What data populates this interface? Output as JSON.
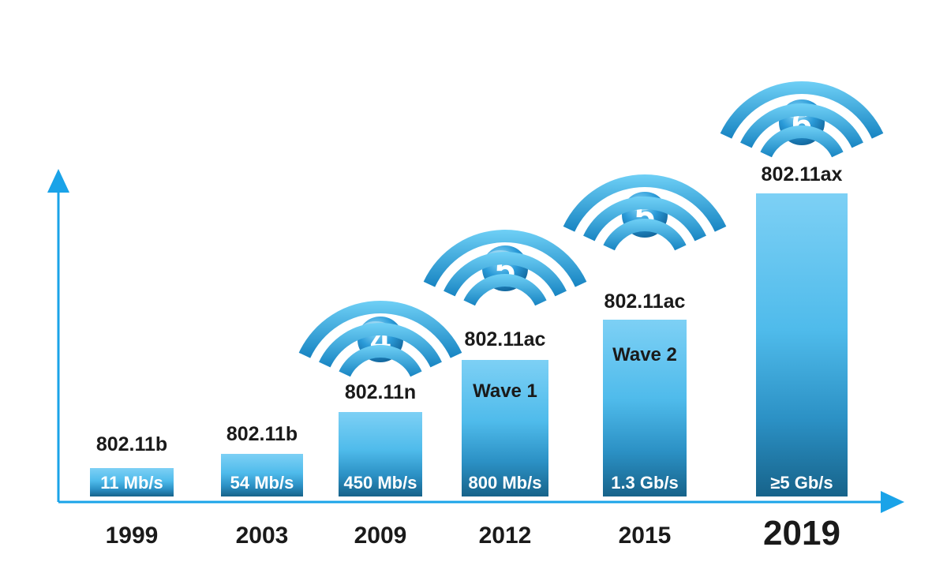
{
  "colors": {
    "axis": "#1aa3e8",
    "bar_top": "#7dd0f5",
    "bar_mid": "#3aaee2",
    "bar_bottom": "#1c6f98",
    "wifi_light": "#5ec8f2",
    "wifi_dark": "#1a8cc8",
    "badge": "#1f8fd0",
    "text": "#1a1a1a"
  },
  "chart_data": {
    "type": "bar",
    "title": "",
    "xlabel": "",
    "ylabel": "",
    "categories": [
      "1999",
      "2003",
      "2009",
      "2012",
      "2015",
      "2019"
    ],
    "values": [
      11,
      54,
      450,
      800,
      1300,
      5000
    ],
    "value_labels": [
      "11 Mb/s",
      "54 Mb/s",
      "450 Mb/s",
      "800 Mb/s",
      "1.3 Gb/s",
      "≥5 Gb/s"
    ],
    "standards": [
      "802.11b",
      "802.11b",
      "802.11n",
      "802.11ac",
      "802.11ac",
      "802.11ax"
    ],
    "sublabels": [
      "",
      "",
      "",
      "Wave 1",
      "Wave 2",
      ""
    ],
    "wifi_generation": [
      "",
      "",
      "4",
      "5",
      "5",
      "6"
    ],
    "highlight_year": "2019",
    "grid": false,
    "legend": "none"
  }
}
